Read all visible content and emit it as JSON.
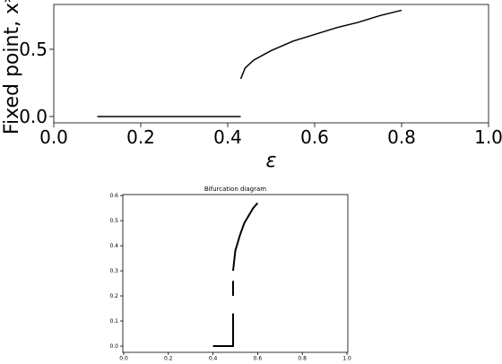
{
  "chart_data": [
    {
      "type": "line",
      "xlabel": "ε",
      "ylabel": "Fixed point, x*",
      "xlim": [
        0,
        1
      ],
      "ylim": [
        -0.047,
        0.833
      ],
      "xticks": [
        {
          "value": 0,
          "label": "0.0"
        },
        0.2,
        0.4,
        0.6,
        0.8,
        {
          "value": 1,
          "label": "1.0"
        }
      ],
      "yticks": [
        {
          "value": 0,
          "label": "0.0"
        },
        0.5
      ],
      "series": [
        {
          "color": "#000000",
          "x": [
            0.1,
            0.43
          ],
          "values": [
            0,
            0
          ]
        },
        {
          "color": "#000000",
          "x": [
            0.43,
            0.44,
            0.46,
            0.5,
            0.55,
            0.6,
            0.65,
            0.7,
            0.75,
            0.8
          ],
          "values": [
            0.28,
            0.36,
            0.42,
            0.49,
            0.56,
            0.61,
            0.66,
            0.7,
            0.75,
            0.79
          ]
        }
      ]
    },
    {
      "type": "line",
      "title": "Bifurcation diagram",
      "xlim": [
        -0.004,
        1.004
      ],
      "ylim": [
        -0.025,
        0.604
      ],
      "xticks": [
        {
          "value": 0,
          "label": "0.0"
        },
        0.2,
        0.4,
        0.6,
        0.8,
        {
          "value": 1,
          "label": "1.0"
        }
      ],
      "yticks": [
        {
          "value": 0,
          "label": "0.0"
        },
        0.1,
        0.2,
        0.3,
        0.4,
        0.5,
        0.6
      ],
      "series": [
        {
          "color": "#000000",
          "x": [
            0.4,
            0.49,
            0.49
          ],
          "values": [
            0,
            0,
            0.13
          ]
        },
        {
          "color": "#000000",
          "x": [
            0.49,
            0.49
          ],
          "values": [
            0.2,
            0.26
          ]
        },
        {
          "color": "#000000",
          "x": [
            0.49,
            0.5,
            0.52,
            0.54,
            0.56,
            0.58,
            0.6
          ],
          "values": [
            0.3,
            0.38,
            0.44,
            0.49,
            0.52,
            0.55,
            0.57
          ]
        }
      ]
    }
  ]
}
